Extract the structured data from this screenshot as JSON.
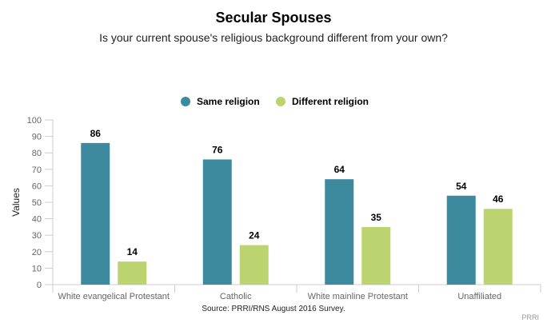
{
  "chart_data": {
    "type": "bar",
    "title": "Secular Spouses",
    "subtitle": "Is your current spouse's religious background different from your own?",
    "ylabel": "Values",
    "xlabel": "",
    "ylim": [
      0,
      100
    ],
    "yticks": [
      0,
      10,
      20,
      30,
      40,
      50,
      60,
      70,
      80,
      90,
      100
    ],
    "categories": [
      "White evangelical Protestant",
      "Catholic",
      "White mainline Protestant",
      "Unaffiliated"
    ],
    "series": [
      {
        "name": "Same religion",
        "color": "#3d8a9e",
        "values": [
          86,
          76,
          64,
          54
        ]
      },
      {
        "name": "Different religion",
        "color": "#bcd46f",
        "values": [
          14,
          24,
          35,
          46
        ]
      }
    ],
    "legend": "top-center",
    "grid": false,
    "source": "Source: PRRI/RNS August 2016 Survey.",
    "credit": "PRRI"
  }
}
